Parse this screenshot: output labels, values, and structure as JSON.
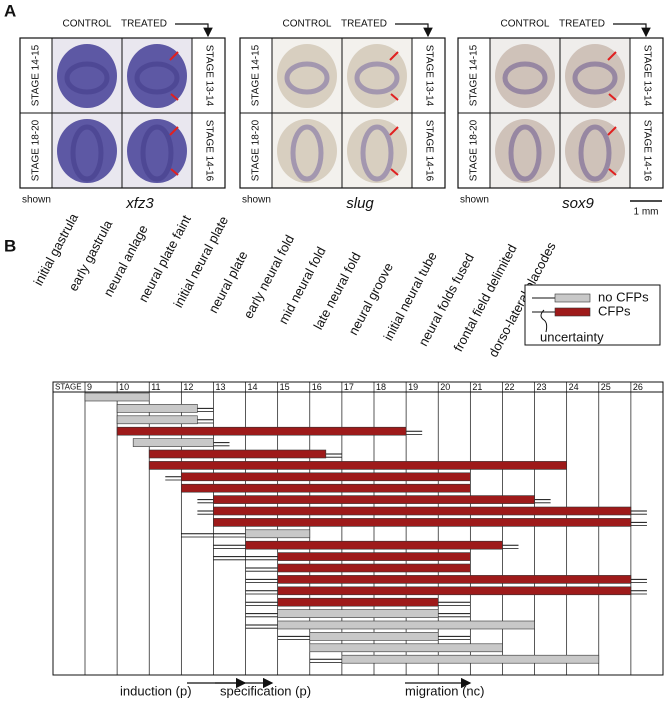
{
  "panel_a": {
    "label": "A",
    "groups": [
      {
        "columns": [
          "CONTROL",
          "TREATED"
        ],
        "rows_left": [
          "STAGE 14-15",
          "STAGE 18-20"
        ],
        "rows_right": [
          "STAGE 13-14",
          "STAGE 14-16"
        ],
        "note": "shown",
        "gene": "xfz3"
      },
      {
        "columns": [
          "CONTROL",
          "TREATED"
        ],
        "rows_left": [
          "STAGE 14-15",
          "STAGE 18-20"
        ],
        "rows_right": [
          "STAGE 13-14",
          "STAGE 14-16"
        ],
        "note": "shown",
        "gene": "slug"
      },
      {
        "columns": [
          "CONTROL",
          "TREATED"
        ],
        "rows_left": [
          "STAGE 14-15",
          "STAGE 18-20"
        ],
        "rows_right": [
          "STAGE 13-14",
          "STAGE 14-16"
        ],
        "note": "shown",
        "gene": "sox9"
      }
    ],
    "scale": "1 mm"
  },
  "panel_b": {
    "label": "B",
    "headings": [
      "initial gastrula",
      "early gastrula",
      "neural anlage",
      "neural plate faint",
      "initial neural plate",
      "neural plate",
      "early neural fold",
      "mid neural fold",
      "late neural fold",
      "neural groove",
      "initial neural tube",
      "neural folds fused",
      "frontal field delimited",
      "dorso-lateral placodes"
    ],
    "stage_label": "STAGE",
    "stages": [
      9,
      10,
      11,
      12,
      13,
      14,
      15,
      16,
      17,
      18,
      19,
      20,
      21,
      22,
      23,
      24,
      25,
      26
    ],
    "legend": [
      {
        "label": "no CFPs",
        "color": "#c8c8c8"
      },
      {
        "label": "CFPs",
        "color": "#9e1a1a"
      },
      {
        "label": "uncertainty"
      }
    ],
    "bars": [
      {
        "start": 9,
        "end": 11,
        "lo": 9,
        "hi": 11,
        "color": "#c8c8c8"
      },
      {
        "start": 10,
        "end": 12.5,
        "lo": 10,
        "hi": 13,
        "color": "#c8c8c8"
      },
      {
        "start": 10,
        "end": 12.5,
        "lo": 10,
        "hi": 13,
        "color": "#c8c8c8"
      },
      {
        "start": 10,
        "end": 19,
        "lo": 10,
        "hi": 19.5,
        "color": "#9e1a1a"
      },
      {
        "start": 10.5,
        "end": 13,
        "lo": 10.5,
        "hi": 13.5,
        "color": "#c8c8c8"
      },
      {
        "start": 11,
        "end": 16.5,
        "lo": 11,
        "hi": 17,
        "color": "#9e1a1a"
      },
      {
        "start": 11,
        "end": 24,
        "lo": 11,
        "hi": 24,
        "color": "#9e1a1a"
      },
      {
        "start": 12,
        "end": 21,
        "lo": 11.5,
        "hi": 21,
        "color": "#9e1a1a"
      },
      {
        "start": 12,
        "end": 21,
        "lo": 12,
        "hi": 21,
        "color": "#9e1a1a"
      },
      {
        "start": 13,
        "end": 23,
        "lo": 12.5,
        "hi": 23.5,
        "color": "#9e1a1a"
      },
      {
        "start": 13,
        "end": 26,
        "lo": 12.5,
        "hi": 26.5,
        "color": "#9e1a1a"
      },
      {
        "start": 13,
        "end": 26,
        "lo": 13,
        "hi": 26.5,
        "color": "#9e1a1a"
      },
      {
        "start": 14,
        "end": 16,
        "lo": 12,
        "hi": 16,
        "color": "#c8c8c8"
      },
      {
        "start": 14,
        "end": 22,
        "lo": 13,
        "hi": 22.5,
        "color": "#9e1a1a"
      },
      {
        "start": 15,
        "end": 21,
        "lo": 13,
        "hi": 21,
        "color": "#9e1a1a"
      },
      {
        "start": 15,
        "end": 21,
        "lo": 14,
        "hi": 21,
        "color": "#9e1a1a"
      },
      {
        "start": 15,
        "end": 26,
        "lo": 14,
        "hi": 26.5,
        "color": "#9e1a1a"
      },
      {
        "start": 15,
        "end": 26,
        "lo": 14,
        "hi": 26.5,
        "color": "#9e1a1a"
      },
      {
        "start": 15,
        "end": 20,
        "lo": 14,
        "hi": 21,
        "color": "#9e1a1a"
      },
      {
        "start": 15,
        "end": 20,
        "lo": 14,
        "hi": 21,
        "color": "#c8c8c8"
      },
      {
        "start": 15,
        "end": 23,
        "lo": 14,
        "hi": 23,
        "color": "#c8c8c8"
      },
      {
        "start": 16,
        "end": 20,
        "lo": 15,
        "hi": 21,
        "color": "#c8c8c8"
      },
      {
        "start": 16,
        "end": 22,
        "lo": 16,
        "hi": 22,
        "color": "#c8c8c8"
      },
      {
        "start": 17,
        "end": 25,
        "lo": 16,
        "hi": 25,
        "color": "#c8c8c8"
      }
    ],
    "processes": [
      "induction (p)",
      "specification (p)",
      "migration (nc)"
    ]
  }
}
